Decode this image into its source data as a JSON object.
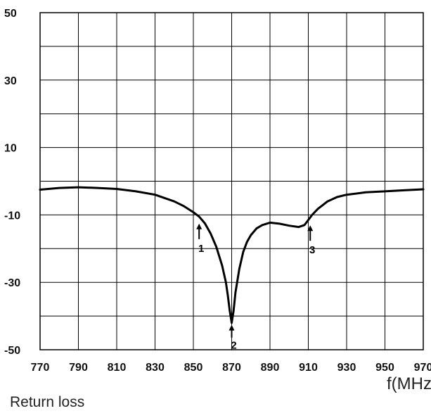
{
  "chart_data": {
    "type": "line",
    "title": "",
    "xlabel": "f(MHz)",
    "ylabel": "",
    "caption": "Return loss",
    "xlim": [
      770,
      970
    ],
    "ylim": [
      -50,
      50
    ],
    "x_ticks": [
      770,
      790,
      810,
      830,
      850,
      870,
      890,
      910,
      930,
      950,
      970
    ],
    "y_ticks": [
      -50,
      -30,
      -10,
      10,
      30,
      50
    ],
    "grid": true,
    "legend": "none",
    "colors": {
      "line": "#000000",
      "grid": "#000000"
    },
    "series": [
      {
        "x": [
          770,
          780,
          790,
          800,
          810,
          820,
          830,
          835,
          840,
          845,
          850,
          853,
          856,
          859,
          862,
          865,
          867,
          868,
          869,
          870,
          871,
          872,
          874,
          876,
          878,
          880,
          883,
          886,
          890,
          895,
          900,
          905,
          908,
          910,
          912,
          915,
          920,
          925,
          930,
          940,
          950,
          960,
          970
        ],
        "y": [
          -2.5,
          -2.0,
          -1.8,
          -2.0,
          -2.3,
          -3.0,
          -4.0,
          -5.0,
          -6.0,
          -7.4,
          -9.2,
          -10.5,
          -12.5,
          -15.5,
          -19.5,
          -25.0,
          -30.0,
          -34.0,
          -38.5,
          -42.0,
          -38.5,
          -33.0,
          -26.0,
          -21.0,
          -18.0,
          -16.0,
          -14.0,
          -13.0,
          -12.3,
          -12.6,
          -13.2,
          -13.6,
          -13.0,
          -11.5,
          -10.0,
          -8.2,
          -6.0,
          -4.7,
          -4.0,
          -3.3,
          -3.0,
          -2.7,
          -2.4
        ]
      }
    ],
    "annotations": [
      {
        "label": "1",
        "x": 853,
        "y": -10.5
      },
      {
        "label": "2",
        "x": 870,
        "y": -42
      },
      {
        "label": "3",
        "x": 911,
        "y": -11
      }
    ]
  }
}
